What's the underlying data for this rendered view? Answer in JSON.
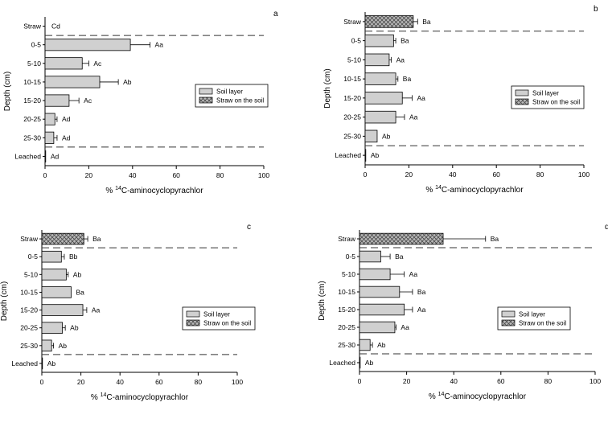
{
  "figure_labels": {
    "y_axis": "Depth (cm)",
    "x_axis_prefix": "% ",
    "x_axis_superscript": "14",
    "x_axis_suffix": "C-aminocyclopyrachlor"
  },
  "legend": {
    "soil_layer": "Soil layer",
    "straw": "Straw on the soil"
  },
  "colors": {
    "soil_fill": "#d0d0d0",
    "straw_fill": "#8a8a8a",
    "axis": "#000000",
    "dash": "#333333"
  },
  "chart_data": [
    {
      "panel": "a",
      "type": "bar",
      "orientation": "horizontal",
      "categories": [
        "Straw",
        "0-5",
        "5-10",
        "10-15",
        "15-20",
        "20-25",
        "25-30",
        "Leached"
      ],
      "values": [
        0,
        39,
        17,
        25,
        11,
        4.5,
        4,
        0.3
      ],
      "errors": [
        0,
        9,
        3,
        8.5,
        4.5,
        1,
        1.5,
        0
      ],
      "labels": [
        "Cd",
        "Aa",
        "Ac",
        "Ab",
        "Ac",
        "Ad",
        "Ad",
        "Ad"
      ],
      "straw_bar": false,
      "xlim": [
        0,
        100
      ],
      "xticks": [
        "0",
        "20",
        "40",
        "60",
        "80",
        "100"
      ],
      "ylabel": "Depth (cm)"
    },
    {
      "panel": "b",
      "type": "bar",
      "orientation": "horizontal",
      "categories": [
        "Straw",
        "0-5",
        "5-10",
        "10-15",
        "15-20",
        "20-25",
        "25-30",
        "Leached"
      ],
      "values": [
        22,
        13,
        11,
        14,
        17,
        14,
        5.5,
        0.3
      ],
      "errors": [
        2,
        1,
        1,
        1,
        4.5,
        4,
        0,
        0
      ],
      "labels": [
        "Ba",
        "Ba",
        "Aa",
        "Ba",
        "Aa",
        "Aa",
        "Ab",
        "Ab"
      ],
      "straw_bar": true,
      "xlim": [
        0,
        100
      ],
      "xticks": [
        "0",
        "20",
        "40",
        "60",
        "80",
        "100"
      ],
      "ylabel": "Depth (cm)"
    },
    {
      "panel": "c",
      "type": "bar",
      "orientation": "horizontal",
      "categories": [
        "Straw",
        "0-5",
        "5-10",
        "10-15",
        "15-20",
        "20-25",
        "25-30",
        "Leached"
      ],
      "values": [
        21.5,
        10,
        12.5,
        15,
        21,
        10.5,
        5,
        0.3
      ],
      "errors": [
        2,
        1.5,
        1,
        0,
        2,
        1.5,
        1,
        0
      ],
      "labels": [
        "Ba",
        "Bb",
        "Ab",
        "Ba",
        "Aa",
        "Ab",
        "Ab",
        "Ab"
      ],
      "straw_bar": true,
      "xlim": [
        0,
        100
      ],
      "xticks": [
        "0",
        "20",
        "40",
        "60",
        "80",
        "100"
      ],
      "ylabel": "Depth (cm)"
    },
    {
      "panel": "d",
      "type": "bar",
      "orientation": "horizontal",
      "categories": [
        "Straw",
        "0-5",
        "5-10",
        "10-15",
        "15-20",
        "20-25",
        "25-30",
        "Leached"
      ],
      "values": [
        35.5,
        9,
        13,
        17,
        19,
        15,
        4.5,
        0.3
      ],
      "errors": [
        18,
        4,
        6,
        5.5,
        3.5,
        0.5,
        1,
        0
      ],
      "labels": [
        "Ba",
        "Ba",
        "Aa",
        "Ba",
        "Aa",
        "Aa",
        "Ab",
        "Ab"
      ],
      "straw_bar": true,
      "xlim": [
        0,
        100
      ],
      "xticks": [
        "0",
        "20",
        "40",
        "60",
        "80",
        "100"
      ],
      "ylabel": "Depth (cm)"
    }
  ]
}
